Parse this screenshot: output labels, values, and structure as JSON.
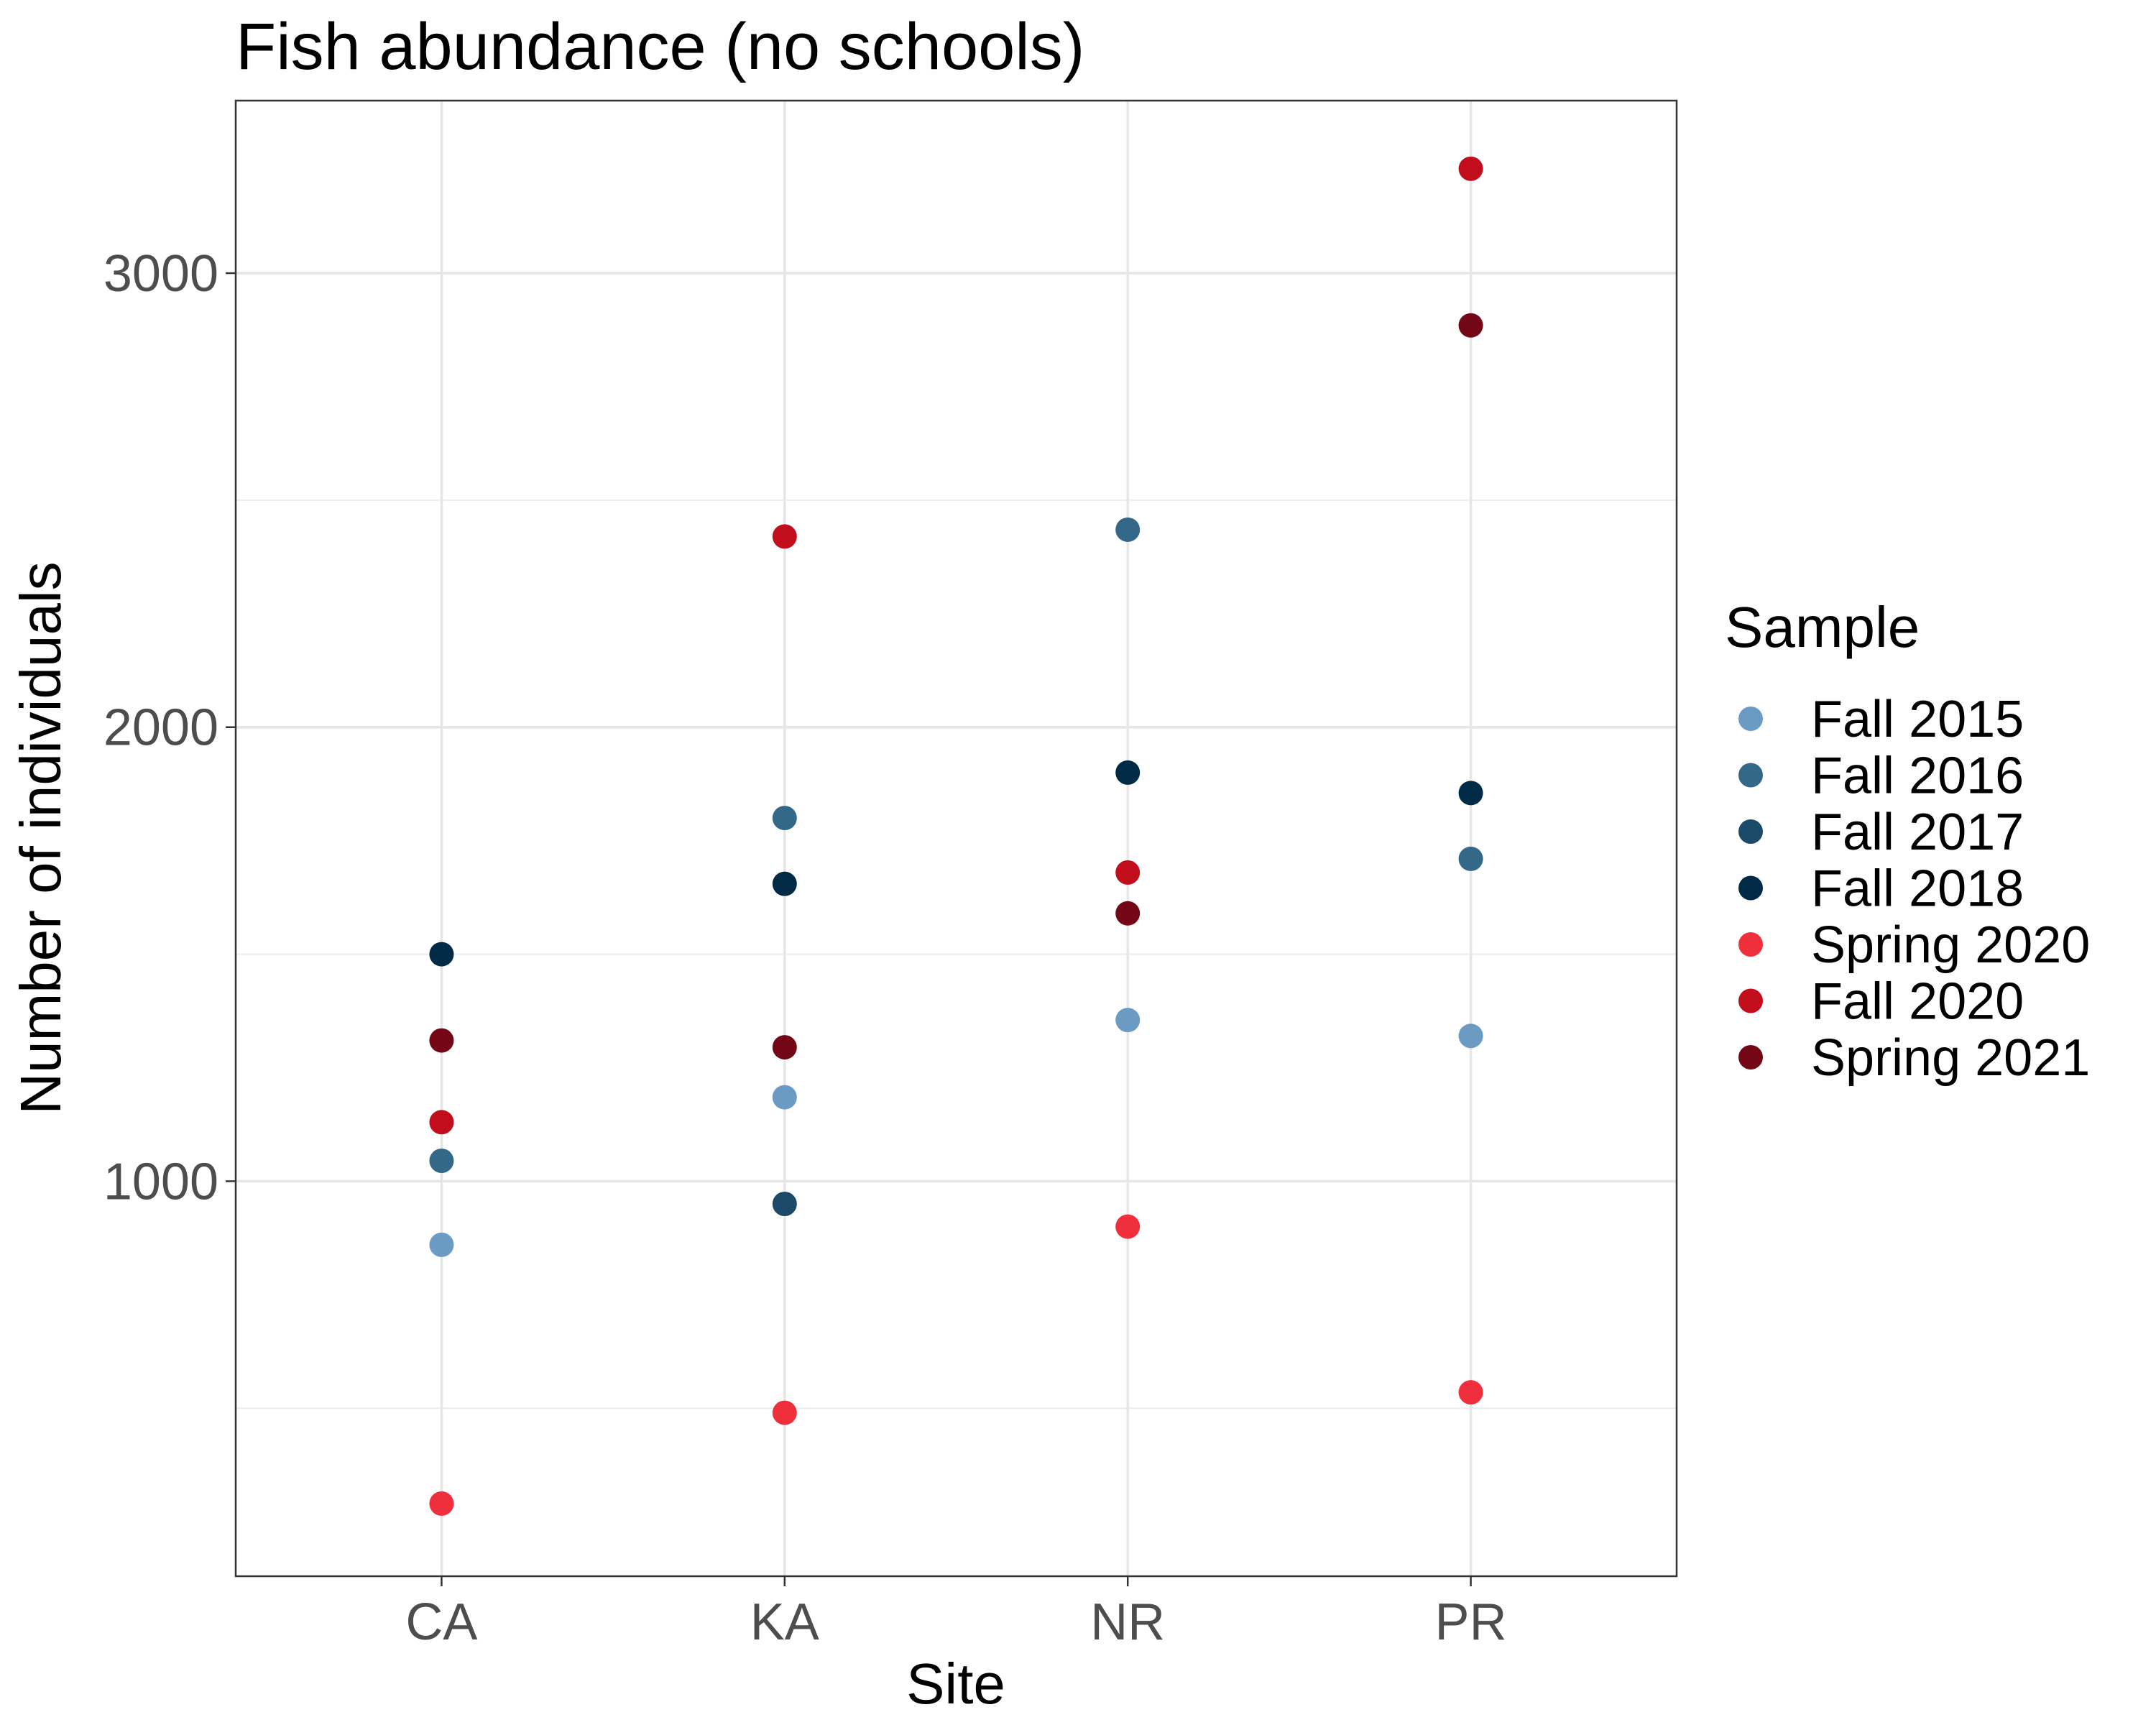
{
  "chart_data": {
    "type": "scatter",
    "title": "Fish abundance (no schools)",
    "xlabel": "Site",
    "ylabel": "Number of individuals",
    "categories": [
      "CA",
      "KA",
      "NR",
      "PR"
    ],
    "yticks": [
      1000,
      2000,
      3000
    ],
    "ylim": [
      130,
      3380
    ],
    "grid": true,
    "legend_title": "Sample",
    "legend_position": "right",
    "series": [
      {
        "name": "Fall 2015",
        "color": "#6b9bc3",
        "values": [
          860,
          1185,
          1355,
          1320
        ]
      },
      {
        "name": "Fall 2016",
        "color": "#346888",
        "values": [
          1045,
          1800,
          2435,
          1710
        ]
      },
      {
        "name": "Fall 2017",
        "color": "#1a4a68",
        "values": [
          null,
          950,
          null,
          null
        ]
      },
      {
        "name": "Fall 2018",
        "color": "#002a46",
        "values": [
          1500,
          1655,
          1900,
          1855
        ]
      },
      {
        "name": "Spring 2020",
        "color": "#ef2f3c",
        "values": [
          290,
          490,
          900,
          535
        ]
      },
      {
        "name": "Fall 2020",
        "color": "#c10d1c",
        "values": [
          1130,
          2420,
          1680,
          3230
        ]
      },
      {
        "name": "Spring 2021",
        "color": "#730716",
        "values": [
          1310,
          1295,
          1590,
          2885
        ]
      }
    ]
  }
}
